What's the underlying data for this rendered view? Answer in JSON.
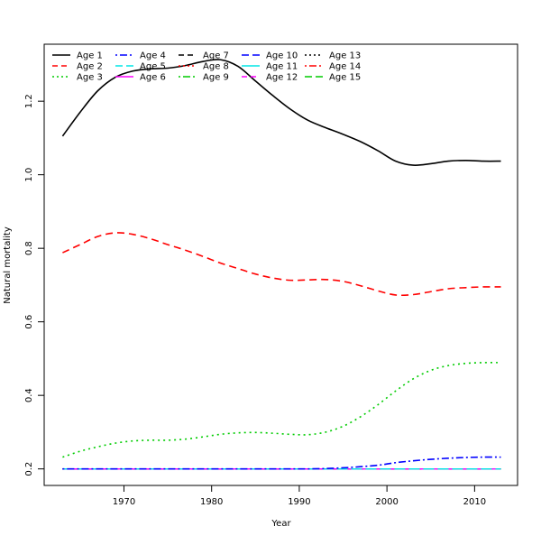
{
  "chart_data": {
    "type": "line",
    "title": "",
    "xlabel": "Year",
    "ylabel": "Natural mortality",
    "xlim": [
      1960.9,
      2014.9
    ],
    "ylim": [
      0.155,
      1.355
    ],
    "xticks": [
      1970,
      1980,
      1990,
      2000,
      2010
    ],
    "yticks": [
      0.2,
      0.4,
      0.6,
      0.8,
      1.0,
      1.2
    ],
    "ytick_labels": [
      "0.2",
      "0.4",
      "0.6",
      "0.8",
      "1.0",
      "1.2"
    ],
    "legend_position": "top-left",
    "x": [
      1963,
      1965,
      1967,
      1969,
      1971,
      1973,
      1975,
      1977,
      1979,
      1981,
      1983,
      1985,
      1987,
      1989,
      1991,
      1993,
      1995,
      1997,
      1999,
      2001,
      2003,
      2005,
      2007,
      2009,
      2011,
      2013
    ],
    "series": [
      {
        "name": "Age 1",
        "color": "#000000",
        "dash": "",
        "values": [
          1.105,
          1.17,
          1.228,
          1.265,
          1.282,
          1.288,
          1.29,
          1.297,
          1.308,
          1.313,
          1.295,
          1.255,
          1.215,
          1.178,
          1.148,
          1.128,
          1.11,
          1.09,
          1.065,
          1.037,
          1.026,
          1.03,
          1.037,
          1.039,
          1.037,
          1.037
        ]
      },
      {
        "name": "Age 2",
        "color": "#ff0000",
        "dash": "8,5",
        "values": [
          0.788,
          0.81,
          0.832,
          0.842,
          0.838,
          0.826,
          0.81,
          0.795,
          0.778,
          0.76,
          0.745,
          0.73,
          0.719,
          0.713,
          0.714,
          0.715,
          0.71,
          0.698,
          0.684,
          0.673,
          0.674,
          0.682,
          0.69,
          0.693,
          0.695,
          0.695
        ]
      },
      {
        "name": "Age 3",
        "color": "#00cc00",
        "dash": "2,4",
        "values": [
          0.232,
          0.248,
          0.26,
          0.27,
          0.276,
          0.278,
          0.278,
          0.281,
          0.287,
          0.294,
          0.298,
          0.299,
          0.297,
          0.294,
          0.293,
          0.3,
          0.316,
          0.342,
          0.375,
          0.412,
          0.445,
          0.468,
          0.481,
          0.487,
          0.489,
          0.489
        ]
      },
      {
        "name": "Age 4",
        "color": "#0000ff",
        "dash": "2,3,8,3",
        "values": [
          0.2,
          0.2,
          0.2,
          0.2,
          0.2,
          0.2,
          0.2,
          0.2,
          0.2,
          0.2,
          0.2,
          0.2,
          0.2,
          0.2,
          0.2,
          0.201,
          0.203,
          0.206,
          0.21,
          0.217,
          0.222,
          0.226,
          0.229,
          0.231,
          0.232,
          0.232
        ]
      },
      {
        "name": "Age 5",
        "color": "#00e5e5",
        "dash": "12,4",
        "values": null
      },
      {
        "name": "Age 6",
        "color": "#ff00ff",
        "dash": "",
        "values": null
      },
      {
        "name": "Age 7",
        "color": "#000000",
        "dash": "8,5",
        "values": null
      },
      {
        "name": "Age 8",
        "color": "#ff0000",
        "dash": "2,4",
        "values": null
      },
      {
        "name": "Age 9",
        "color": "#00cc00",
        "dash": "2,3,8,3",
        "values": null
      },
      {
        "name": "Age 10",
        "color": "#0000ff",
        "dash": "12,4",
        "values": null
      },
      {
        "name": "Age 11",
        "color": "#00e5e5",
        "dash": "",
        "values": null
      },
      {
        "name": "Age 12",
        "color": "#ff00ff",
        "dash": "8,5",
        "values": null
      },
      {
        "name": "Age 13",
        "color": "#000000",
        "dash": "2,4",
        "values": null
      },
      {
        "name": "Age 14",
        "color": "#ff0000",
        "dash": "2,3,8,3",
        "values": null
      },
      {
        "name": "Age 15",
        "color": "#00cc00",
        "dash": "12,4",
        "values": null
      }
    ],
    "constant_value_for_null_series": 0.2
  }
}
